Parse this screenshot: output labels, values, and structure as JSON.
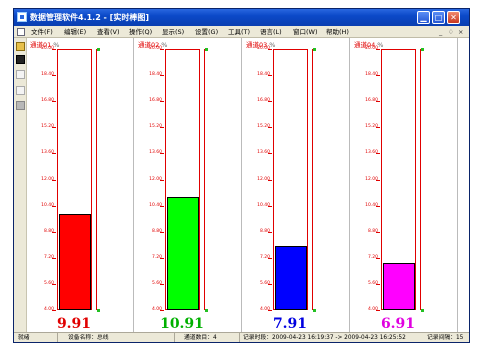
{
  "window": {
    "title": "数据管理软件4.1.2 - [实时棒图]",
    "controls": {
      "minimize": "▁",
      "maximize": "□",
      "close": "✕"
    }
  },
  "menubar": {
    "items": [
      "文件(F)",
      "编辑(E)",
      "查看(V)",
      "操作(Q)",
      "显示(S)",
      "设置(G)",
      "工具(T)",
      "语言(L)",
      "窗口(W)",
      "帮助(H)"
    ],
    "mdi": {
      "minimize": "_",
      "restore": "♢",
      "close": "×"
    }
  },
  "toolbar": {
    "icons": [
      "open-folder-icon",
      "stop-icon",
      "document-icon",
      "document-icon",
      "print-icon"
    ]
  },
  "axis": {
    "ticks": [
      "20.00",
      "18.40",
      "16.80",
      "15.20",
      "13.60",
      "12.00",
      "10.40",
      "8.80",
      "7.20",
      "5.60",
      "4.00"
    ],
    "min": 4.0,
    "max": 20.0
  },
  "channels": [
    {
      "label": "通道01",
      "unit": "%",
      "value": 9.91,
      "display": "9.91",
      "color": "#ff0000"
    },
    {
      "label": "通道02",
      "unit": "%",
      "value": 10.91,
      "display": "10.91",
      "color": "#00ff00"
    },
    {
      "label": "通道03",
      "unit": "%",
      "value": 7.91,
      "display": "7.91",
      "color": "#0000ff"
    },
    {
      "label": "通道04",
      "unit": "%",
      "value": 6.91,
      "display": "6.91",
      "color": "#ff00ff"
    }
  ],
  "value_colors": [
    "#e00000",
    "#00b000",
    "#0000e0",
    "#e000e0"
  ],
  "chart_data": {
    "type": "bar",
    "categories": [
      "通道01",
      "通道02",
      "通道03",
      "通道04"
    ],
    "values": [
      9.91,
      10.91,
      7.91,
      6.91
    ],
    "ylim": [
      4.0,
      20.0
    ],
    "ylabel": "%"
  },
  "statusbar": {
    "ready": "就绪",
    "device": "设备名称：总线",
    "channel_count": "通道数目：4",
    "record_time": "记录时段：2009-04-23 16:19:37 -> 2009-04-23 16:25:52",
    "interval": "记录间隔：15"
  }
}
